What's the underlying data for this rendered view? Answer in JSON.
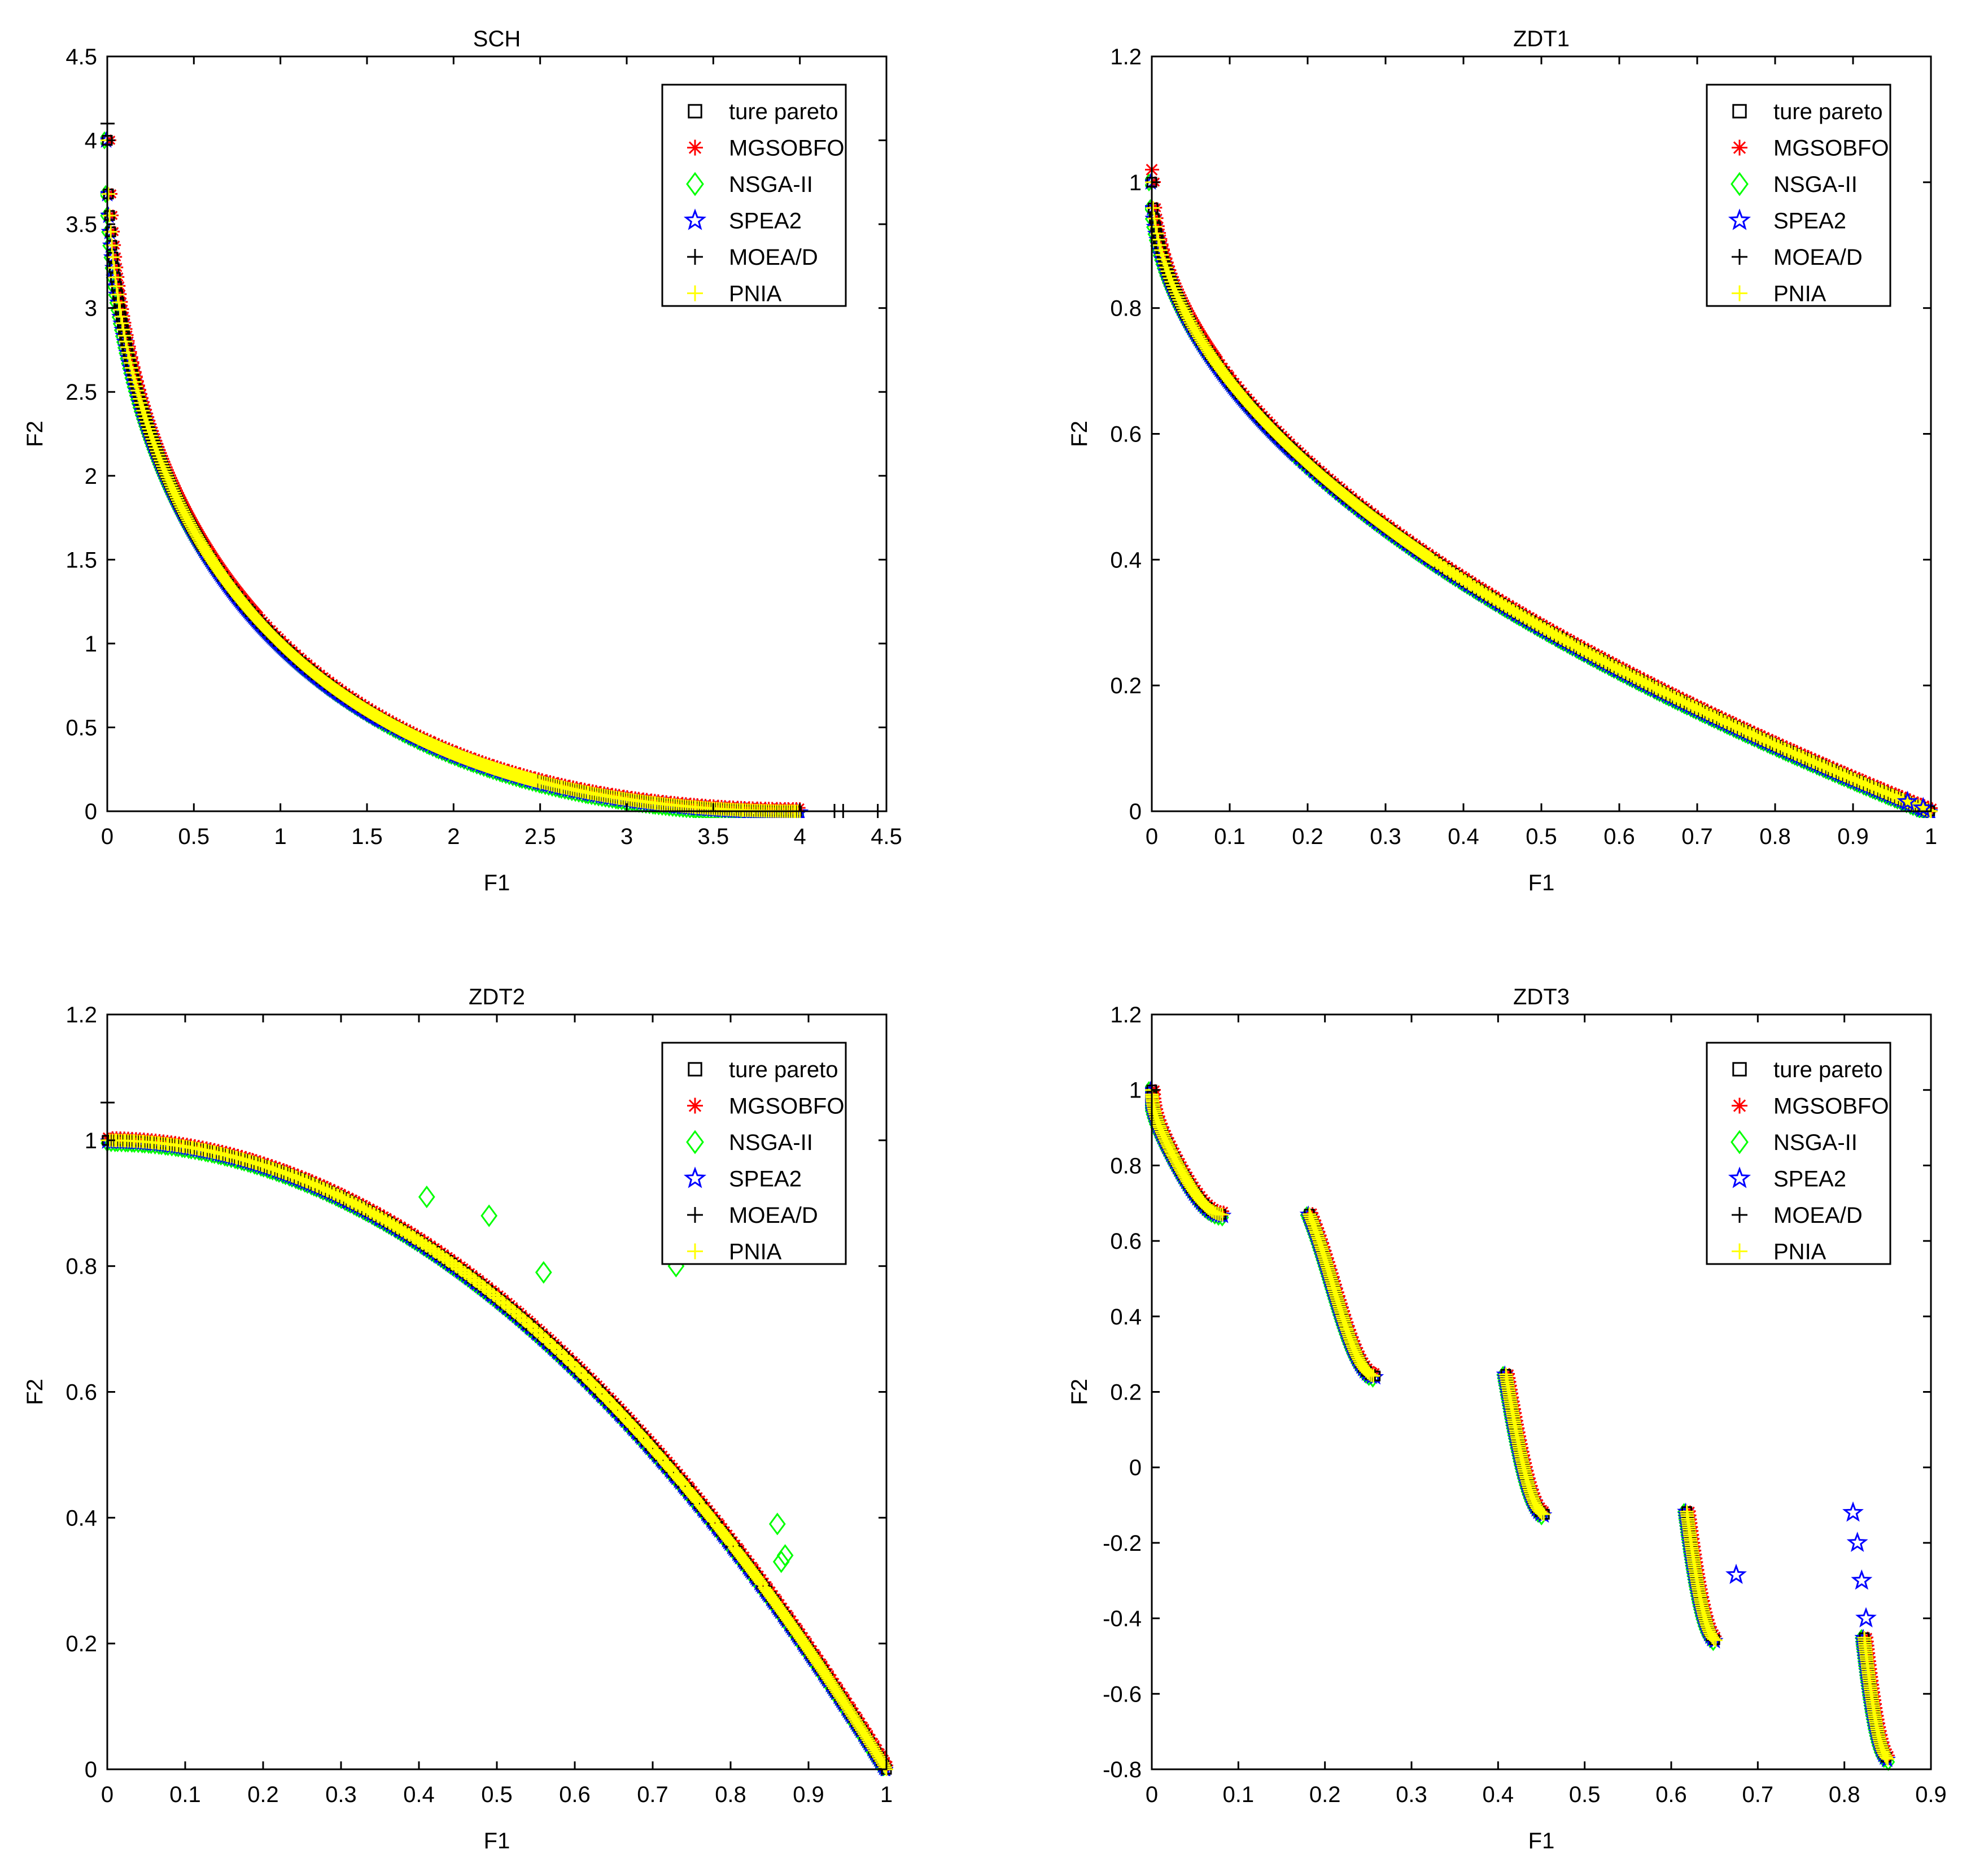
{
  "legend_entries": [
    {
      "name": "ture pareto",
      "marker": "square",
      "color": "#000000"
    },
    {
      "name": "MGSOBFO",
      "marker": "asterisk",
      "color": "#ff0000"
    },
    {
      "name": "NSGA-II",
      "marker": "diamond",
      "color": "#00ff00"
    },
    {
      "name": "SPEA2",
      "marker": "star",
      "color": "#0000ff"
    },
    {
      "name": "MOEA/D",
      "marker": "plus",
      "color": "#000000"
    },
    {
      "name": "PNIA",
      "marker": "plus",
      "color": "#ffff00"
    }
  ],
  "chart_data": [
    {
      "type": "scatter",
      "title": "SCH",
      "xlabel": "F1",
      "ylabel": "F2",
      "xlim": [
        0,
        4.5
      ],
      "ylim": [
        0,
        4.5
      ],
      "xticks": [
        0,
        0.5,
        1,
        1.5,
        2,
        2.5,
        3,
        3.5,
        4,
        4.5
      ],
      "yticks": [
        0,
        0.5,
        1,
        1.5,
        2,
        2.5,
        3,
        3.5,
        4,
        4.5
      ],
      "xtick_labels": [
        "0",
        "0.5",
        "1",
        "1.5",
        "2",
        "2.5",
        "3",
        "3.5",
        "4",
        "4.5"
      ],
      "ytick_labels": [
        "0",
        "0.5",
        "1",
        "1.5",
        "2",
        "2.5",
        "3",
        "3.5",
        "4",
        "4.5"
      ],
      "legend_position": "top-right",
      "front": {
        "formula": "sch",
        "segments": [
          [
            0,
            4
          ]
        ]
      },
      "extra_points": [
        {
          "series": "MOEA/D",
          "x": 0.0,
          "y": 4.1
        },
        {
          "series": "MOEA/D",
          "x": 4.2,
          "y": 0.0
        },
        {
          "series": "MOEA/D",
          "x": 4.25,
          "y": 0.0
        },
        {
          "series": "MOEA/D",
          "x": 4.45,
          "y": 0.0
        }
      ]
    },
    {
      "type": "scatter",
      "title": "ZDT1",
      "xlabel": "F1",
      "ylabel": "F2",
      "xlim": [
        0,
        1
      ],
      "ylim": [
        0,
        1.2
      ],
      "xticks": [
        0,
        0.1,
        0.2,
        0.3,
        0.4,
        0.5,
        0.6,
        0.7,
        0.8,
        0.9,
        1
      ],
      "yticks": [
        0,
        0.2,
        0.4,
        0.6,
        0.8,
        1,
        1.2
      ],
      "xtick_labels": [
        "0",
        "0.1",
        "0.2",
        "0.3",
        "0.4",
        "0.5",
        "0.6",
        "0.7",
        "0.8",
        "0.9",
        "1"
      ],
      "ytick_labels": [
        "0",
        "0.2",
        "0.4",
        "0.6",
        "0.8",
        "1",
        "1.2"
      ],
      "legend_position": "top-right",
      "front": {
        "formula": "zdt1",
        "segments": [
          [
            0,
            1
          ]
        ]
      },
      "extra_points": [
        {
          "series": "MGSOBFO",
          "x": 0.0,
          "y": 1.02
        },
        {
          "series": "SPEA2",
          "x": 0.97,
          "y": 0.015
        },
        {
          "series": "SPEA2",
          "x": 0.99,
          "y": 0.005
        }
      ]
    },
    {
      "type": "scatter",
      "title": "ZDT2",
      "xlabel": "F1",
      "ylabel": "F2",
      "xlim": [
        0,
        1
      ],
      "ylim": [
        0,
        1.2
      ],
      "xticks": [
        0,
        0.1,
        0.2,
        0.3,
        0.4,
        0.5,
        0.6,
        0.7,
        0.8,
        0.9,
        1
      ],
      "yticks": [
        0,
        0.2,
        0.4,
        0.6,
        0.8,
        1,
        1.2
      ],
      "xtick_labels": [
        "0",
        "0.1",
        "0.2",
        "0.3",
        "0.4",
        "0.5",
        "0.6",
        "0.7",
        "0.8",
        "0.9",
        "1"
      ],
      "ytick_labels": [
        "0",
        "0.2",
        "0.4",
        "0.6",
        "0.8",
        "1",
        "1.2"
      ],
      "legend_position": "top-right",
      "front": {
        "formula": "zdt2",
        "segments": [
          [
            0,
            1
          ]
        ]
      },
      "extra_points": [
        {
          "series": "MOEA/D",
          "x": 0.0,
          "y": 1.06
        },
        {
          "series": "NSGA-II",
          "x": 0.41,
          "y": 0.91
        },
        {
          "series": "NSGA-II",
          "x": 0.49,
          "y": 0.88
        },
        {
          "series": "NSGA-II",
          "x": 0.56,
          "y": 0.79
        },
        {
          "series": "NSGA-II",
          "x": 0.73,
          "y": 0.8
        },
        {
          "series": "NSGA-II",
          "x": 0.86,
          "y": 0.39
        },
        {
          "series": "NSGA-II",
          "x": 0.87,
          "y": 0.34
        },
        {
          "series": "NSGA-II",
          "x": 0.865,
          "y": 0.33
        }
      ]
    },
    {
      "type": "scatter",
      "title": "ZDT3",
      "xlabel": "F1",
      "ylabel": "F2",
      "xlim": [
        0,
        0.9
      ],
      "ylim": [
        -0.8,
        1.2
      ],
      "xticks": [
        0,
        0.1,
        0.2,
        0.3,
        0.4,
        0.5,
        0.6,
        0.7,
        0.8,
        0.9
      ],
      "yticks": [
        -0.8,
        -0.6,
        -0.4,
        -0.2,
        0,
        0.2,
        0.4,
        0.6,
        0.8,
        1,
        1.2
      ],
      "xtick_labels": [
        "0",
        "0.1",
        "0.2",
        "0.3",
        "0.4",
        "0.5",
        "0.6",
        "0.7",
        "0.8",
        "0.9"
      ],
      "ytick_labels": [
        "-0.8",
        "-0.6",
        "-0.4",
        "-0.2",
        "0",
        "0.2",
        "0.4",
        "0.6",
        "0.8",
        "1",
        "1.2"
      ],
      "legend_position": "top-right",
      "front": {
        "formula": "zdt3",
        "segments": [
          [
            0,
            0.083
          ],
          [
            0.182,
            0.258
          ],
          [
            0.409,
            0.454
          ],
          [
            0.618,
            0.652
          ],
          [
            0.823,
            0.852
          ]
        ]
      },
      "extra_points": [
        {
          "series": "SPEA2",
          "x": 0.675,
          "y": -0.285
        },
        {
          "series": "SPEA2",
          "x": 0.81,
          "y": -0.12
        },
        {
          "series": "SPEA2",
          "x": 0.815,
          "y": -0.2
        },
        {
          "series": "SPEA2",
          "x": 0.82,
          "y": -0.3
        },
        {
          "series": "SPEA2",
          "x": 0.825,
          "y": -0.4
        }
      ]
    }
  ]
}
